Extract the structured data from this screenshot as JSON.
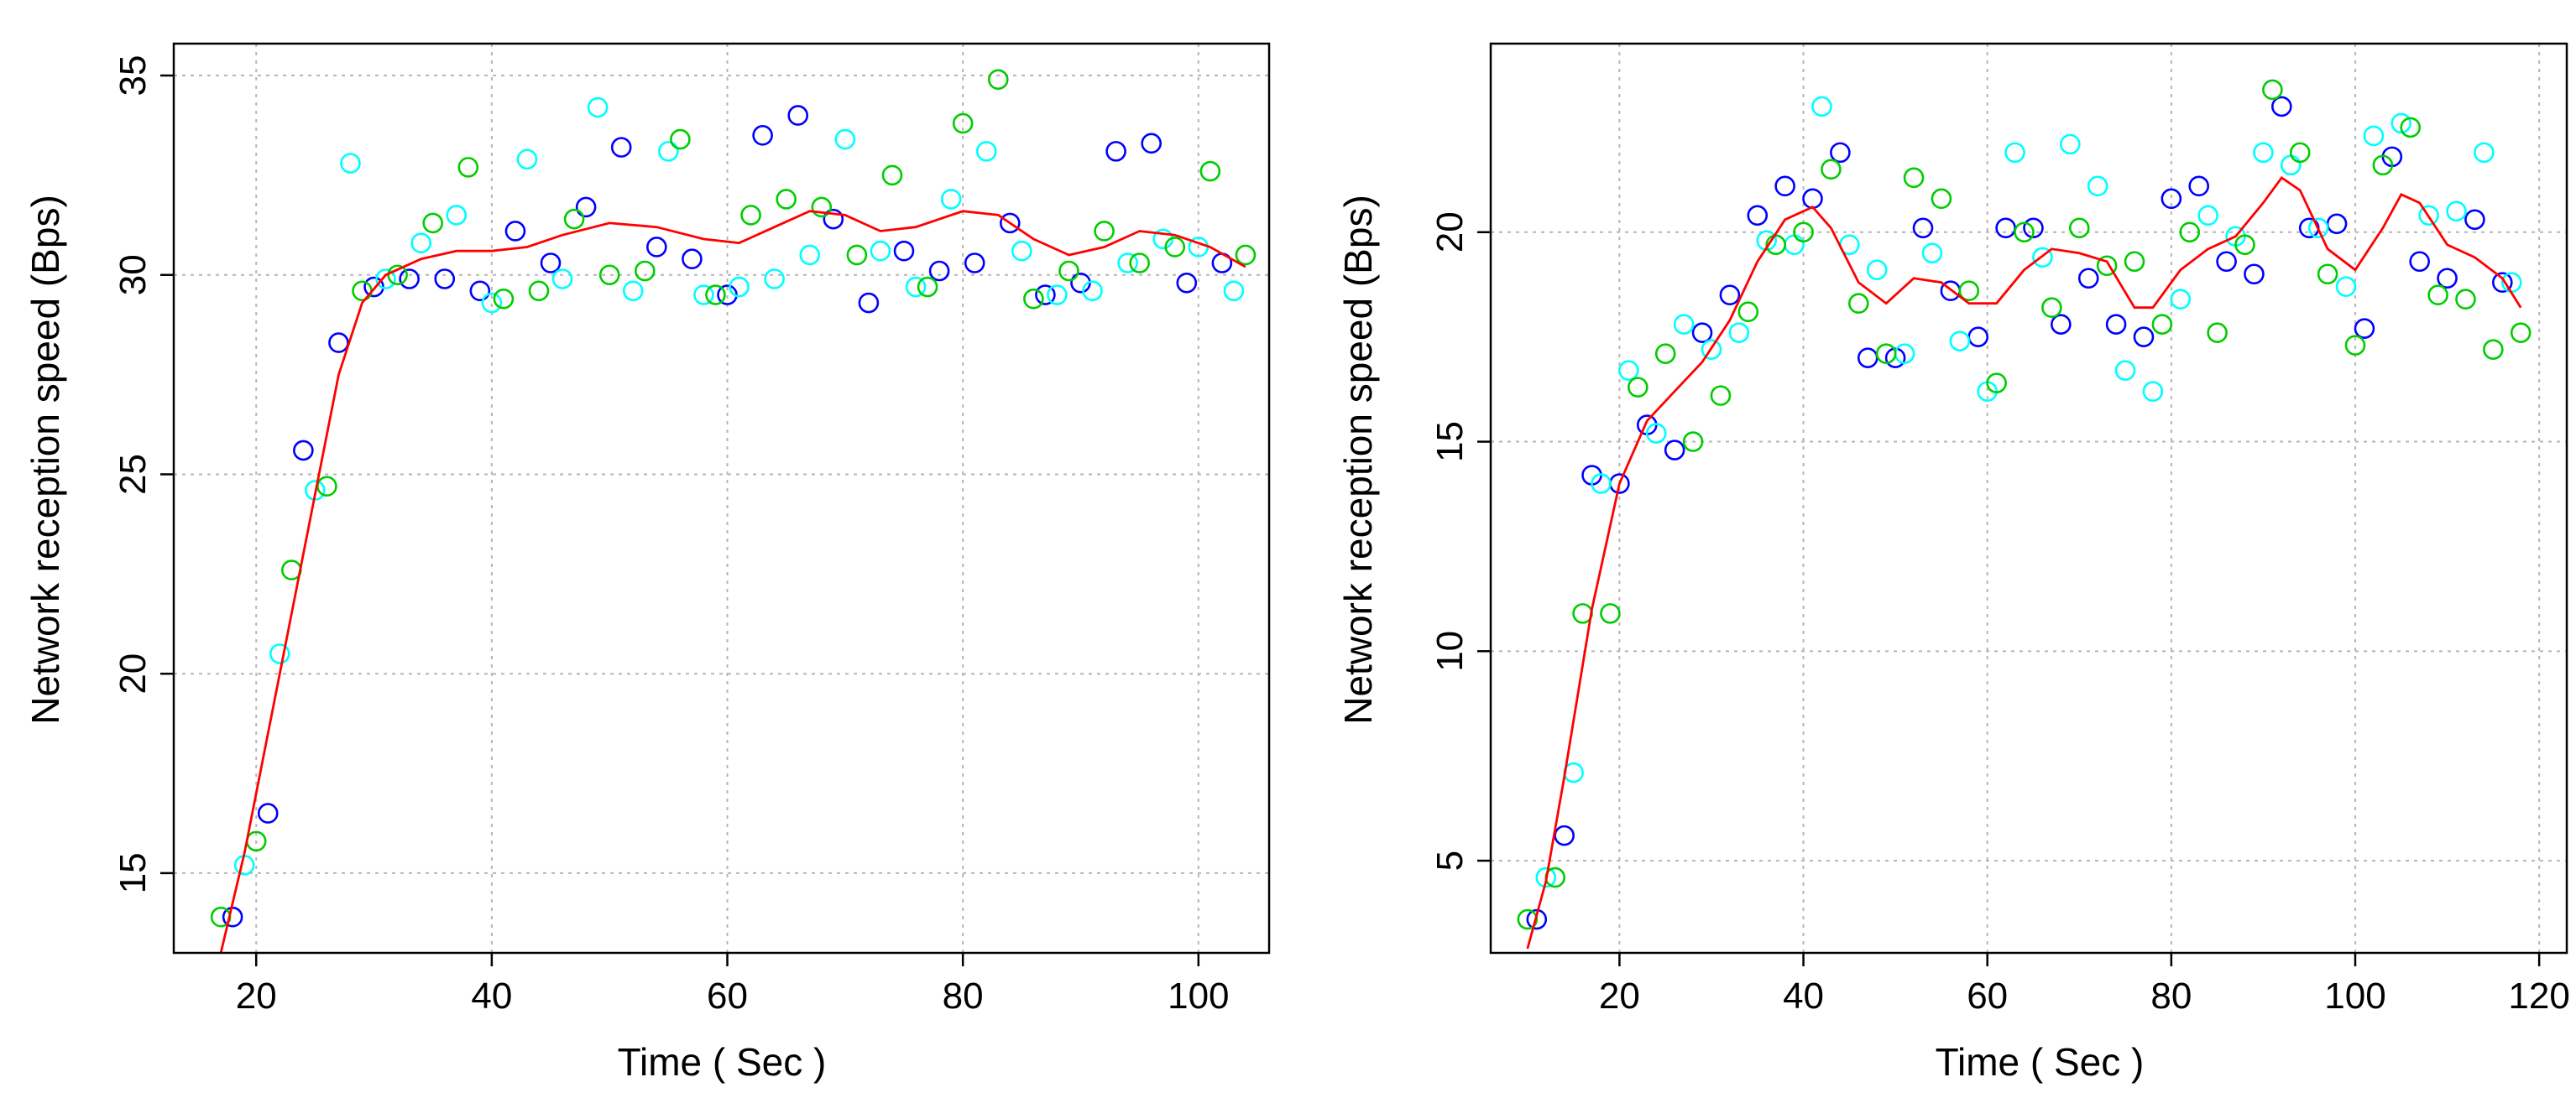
{
  "colors": {
    "series_blue": "#0000ff",
    "series_cyan": "#00ffff",
    "series_green": "#00cd00",
    "trend": "#ff0000",
    "grid": "#b5b5b5"
  },
  "chart_data": [
    {
      "type": "scatter",
      "title": "",
      "xlabel": "Time ( Sec )",
      "ylabel": "Network reception speed (Bps)",
      "xlim": [
        13,
        106
      ],
      "ylim": [
        13,
        35.8
      ],
      "xticks": [
        20,
        40,
        60,
        80,
        100
      ],
      "yticks": [
        15,
        20,
        25,
        30,
        35
      ],
      "grid": true,
      "series": [
        {
          "name": "blue",
          "color": "#0000ff",
          "points": [
            [
              18,
              13.9
            ],
            [
              21,
              16.5
            ],
            [
              24,
              25.6
            ],
            [
              27,
              28.3
            ],
            [
              30,
              29.7
            ],
            [
              33,
              29.9
            ],
            [
              36,
              29.9
            ],
            [
              39,
              29.6
            ],
            [
              42,
              31.1
            ],
            [
              45,
              30.3
            ],
            [
              48,
              31.7
            ],
            [
              51,
              33.2
            ],
            [
              54,
              30.7
            ],
            [
              57,
              30.4
            ],
            [
              60,
              29.5
            ],
            [
              63,
              33.5
            ],
            [
              66,
              34.0
            ],
            [
              69,
              31.4
            ],
            [
              72,
              29.3
            ],
            [
              75,
              30.6
            ],
            [
              78,
              30.1
            ],
            [
              81,
              30.3
            ],
            [
              84,
              31.3
            ],
            [
              87,
              29.5
            ],
            [
              90,
              29.8
            ],
            [
              93,
              33.1
            ],
            [
              96,
              33.3
            ],
            [
              99,
              29.8
            ],
            [
              102,
              30.3
            ]
          ]
        },
        {
          "name": "cyan",
          "color": "#00ffff",
          "points": [
            [
              19,
              15.2
            ],
            [
              22,
              20.5
            ],
            [
              25,
              24.6
            ],
            [
              28,
              32.8
            ],
            [
              31,
              29.9
            ],
            [
              34,
              30.8
            ],
            [
              37,
              31.5
            ],
            [
              40,
              29.3
            ],
            [
              43,
              32.9
            ],
            [
              46,
              29.9
            ],
            [
              49,
              34.2
            ],
            [
              52,
              29.6
            ],
            [
              55,
              33.1
            ],
            [
              58,
              29.5
            ],
            [
              61,
              29.7
            ],
            [
              64,
              29.9
            ],
            [
              67,
              30.5
            ],
            [
              70,
              33.4
            ],
            [
              73,
              30.6
            ],
            [
              76,
              29.7
            ],
            [
              79,
              31.9
            ],
            [
              82,
              33.1
            ],
            [
              85,
              30.6
            ],
            [
              88,
              29.5
            ],
            [
              91,
              29.6
            ],
            [
              94,
              30.3
            ],
            [
              97,
              30.9
            ],
            [
              100,
              30.7
            ],
            [
              103,
              29.6
            ]
          ]
        },
        {
          "name": "green",
          "color": "#00cd00",
          "points": [
            [
              17,
              13.9
            ],
            [
              20,
              15.8
            ],
            [
              23,
              22.6
            ],
            [
              26,
              24.7
            ],
            [
              29,
              29.6
            ],
            [
              32,
              30.0
            ],
            [
              35,
              31.3
            ],
            [
              38,
              32.7
            ],
            [
              41,
              29.4
            ],
            [
              44,
              29.6
            ],
            [
              47,
              31.4
            ],
            [
              50,
              30.0
            ],
            [
              53,
              30.1
            ],
            [
              56,
              33.4
            ],
            [
              59,
              29.5
            ],
            [
              62,
              31.5
            ],
            [
              65,
              31.9
            ],
            [
              68,
              31.7
            ],
            [
              71,
              30.5
            ],
            [
              74,
              32.5
            ],
            [
              77,
              29.7
            ],
            [
              80,
              33.8
            ],
            [
              83,
              34.9
            ],
            [
              86,
              29.4
            ],
            [
              89,
              30.1
            ],
            [
              92,
              31.1
            ],
            [
              95,
              30.3
            ],
            [
              98,
              30.7
            ],
            [
              101,
              32.6
            ],
            [
              104,
              30.5
            ]
          ]
        }
      ],
      "trend": {
        "name": "smoothed",
        "color": "#ff0000",
        "points": [
          [
            17,
            13.0
          ],
          [
            19,
            15.5
          ],
          [
            22,
            20.0
          ],
          [
            25,
            24.5
          ],
          [
            27,
            27.5
          ],
          [
            29,
            29.3
          ],
          [
            31,
            30.0
          ],
          [
            34,
            30.4
          ],
          [
            37,
            30.6
          ],
          [
            40,
            30.6
          ],
          [
            43,
            30.7
          ],
          [
            46,
            31.0
          ],
          [
            50,
            31.3
          ],
          [
            54,
            31.2
          ],
          [
            58,
            30.9
          ],
          [
            61,
            30.8
          ],
          [
            64,
            31.2
          ],
          [
            67,
            31.6
          ],
          [
            70,
            31.5
          ],
          [
            73,
            31.1
          ],
          [
            76,
            31.2
          ],
          [
            80,
            31.6
          ],
          [
            83,
            31.5
          ],
          [
            86,
            30.9
          ],
          [
            89,
            30.5
          ],
          [
            92,
            30.7
          ],
          [
            95,
            31.1
          ],
          [
            98,
            31.0
          ],
          [
            101,
            30.7
          ],
          [
            104,
            30.2
          ]
        ]
      }
    },
    {
      "type": "scatter",
      "title": "",
      "xlabel": "Time ( Sec )",
      "ylabel": "Network reception speed (Bps)",
      "xlim": [
        6,
        123
      ],
      "ylim": [
        2.8,
        24.5
      ],
      "xticks": [
        20,
        40,
        60,
        80,
        100,
        120
      ],
      "yticks": [
        5,
        10,
        15,
        20
      ],
      "grid": true,
      "series": [
        {
          "name": "blue",
          "color": "#0000ff",
          "points": [
            [
              11,
              3.6
            ],
            [
              14,
              5.6
            ],
            [
              17,
              14.2
            ],
            [
              20,
              14.0
            ],
            [
              23,
              15.4
            ],
            [
              26,
              14.8
            ],
            [
              29,
              17.6
            ],
            [
              32,
              18.5
            ],
            [
              35,
              20.4
            ],
            [
              38,
              21.1
            ],
            [
              41,
              20.8
            ],
            [
              44,
              21.9
            ],
            [
              47,
              17.0
            ],
            [
              50,
              17.0
            ],
            [
              53,
              20.1
            ],
            [
              56,
              18.6
            ],
            [
              59,
              17.5
            ],
            [
              62,
              20.1
            ],
            [
              65,
              20.1
            ],
            [
              68,
              17.8
            ],
            [
              71,
              18.9
            ],
            [
              74,
              17.8
            ],
            [
              77,
              17.5
            ],
            [
              80,
              20.8
            ],
            [
              83,
              21.1
            ],
            [
              86,
              19.3
            ],
            [
              89,
              19.0
            ],
            [
              92,
              23.0
            ],
            [
              95,
              20.1
            ],
            [
              98,
              20.2
            ],
            [
              101,
              17.7
            ],
            [
              104,
              21.8
            ],
            [
              107,
              19.3
            ],
            [
              110,
              18.9
            ],
            [
              113,
              20.3
            ],
            [
              116,
              18.8
            ]
          ]
        },
        {
          "name": "cyan",
          "color": "#00ffff",
          "points": [
            [
              12,
              4.6
            ],
            [
              15,
              7.1
            ],
            [
              18,
              14.0
            ],
            [
              21,
              16.7
            ],
            [
              24,
              15.2
            ],
            [
              27,
              17.8
            ],
            [
              30,
              17.2
            ],
            [
              33,
              17.6
            ],
            [
              36,
              19.8
            ],
            [
              39,
              19.7
            ],
            [
              42,
              23.0
            ],
            [
              45,
              19.7
            ],
            [
              48,
              19.1
            ],
            [
              51,
              17.1
            ],
            [
              54,
              19.5
            ],
            [
              57,
              17.4
            ],
            [
              60,
              16.2
            ],
            [
              63,
              21.9
            ],
            [
              66,
              19.4
            ],
            [
              69,
              22.1
            ],
            [
              72,
              21.1
            ],
            [
              75,
              16.7
            ],
            [
              78,
              16.2
            ],
            [
              81,
              18.4
            ],
            [
              84,
              20.4
            ],
            [
              87,
              19.9
            ],
            [
              90,
              21.9
            ],
            [
              93,
              21.6
            ],
            [
              96,
              20.1
            ],
            [
              99,
              18.7
            ],
            [
              102,
              22.3
            ],
            [
              105,
              22.6
            ],
            [
              108,
              20.4
            ],
            [
              111,
              20.5
            ],
            [
              114,
              21.9
            ],
            [
              117,
              18.8
            ]
          ]
        },
        {
          "name": "green",
          "color": "#00cd00",
          "points": [
            [
              10,
              3.6
            ],
            [
              13,
              4.6
            ],
            [
              16,
              10.9
            ],
            [
              19,
              10.9
            ],
            [
              22,
              16.3
            ],
            [
              25,
              17.1
            ],
            [
              28,
              15.0
            ],
            [
              31,
              16.1
            ],
            [
              34,
              18.1
            ],
            [
              37,
              19.7
            ],
            [
              40,
              20.0
            ],
            [
              43,
              21.5
            ],
            [
              46,
              18.3
            ],
            [
              49,
              17.1
            ],
            [
              52,
              21.3
            ],
            [
              55,
              20.8
            ],
            [
              58,
              18.6
            ],
            [
              61,
              16.4
            ],
            [
              64,
              20.0
            ],
            [
              67,
              18.2
            ],
            [
              70,
              20.1
            ],
            [
              73,
              19.2
            ],
            [
              76,
              19.3
            ],
            [
              79,
              17.8
            ],
            [
              82,
              20.0
            ],
            [
              85,
              17.6
            ],
            [
              88,
              19.7
            ],
            [
              91,
              23.4
            ],
            [
              94,
              21.9
            ],
            [
              97,
              19.0
            ],
            [
              100,
              17.3
            ],
            [
              103,
              21.6
            ],
            [
              106,
              22.5
            ],
            [
              109,
              18.5
            ],
            [
              112,
              18.4
            ],
            [
              115,
              17.2
            ],
            [
              118,
              17.6
            ]
          ]
        }
      ],
      "trend": {
        "name": "smoothed",
        "color": "#ff0000",
        "points": [
          [
            10,
            2.9
          ],
          [
            12,
            4.5
          ],
          [
            14,
            7.0
          ],
          [
            17,
            11.0
          ],
          [
            20,
            14.0
          ],
          [
            23,
            15.5
          ],
          [
            26,
            16.2
          ],
          [
            29,
            16.9
          ],
          [
            32,
            17.9
          ],
          [
            35,
            19.3
          ],
          [
            38,
            20.3
          ],
          [
            41,
            20.6
          ],
          [
            43,
            20.1
          ],
          [
            46,
            18.8
          ],
          [
            49,
            18.3
          ],
          [
            52,
            18.9
          ],
          [
            55,
            18.8
          ],
          [
            58,
            18.3
          ],
          [
            61,
            18.3
          ],
          [
            64,
            19.1
          ],
          [
            67,
            19.6
          ],
          [
            70,
            19.5
          ],
          [
            73,
            19.3
          ],
          [
            76,
            18.2
          ],
          [
            78,
            18.2
          ],
          [
            81,
            19.1
          ],
          [
            84,
            19.6
          ],
          [
            87,
            19.9
          ],
          [
            90,
            20.7
          ],
          [
            92,
            21.3
          ],
          [
            94,
            21.0
          ],
          [
            97,
            19.6
          ],
          [
            100,
            19.1
          ],
          [
            103,
            20.1
          ],
          [
            105,
            20.9
          ],
          [
            107,
            20.7
          ],
          [
            110,
            19.7
          ],
          [
            113,
            19.4
          ],
          [
            116,
            18.9
          ],
          [
            118,
            18.2
          ]
        ]
      }
    }
  ]
}
